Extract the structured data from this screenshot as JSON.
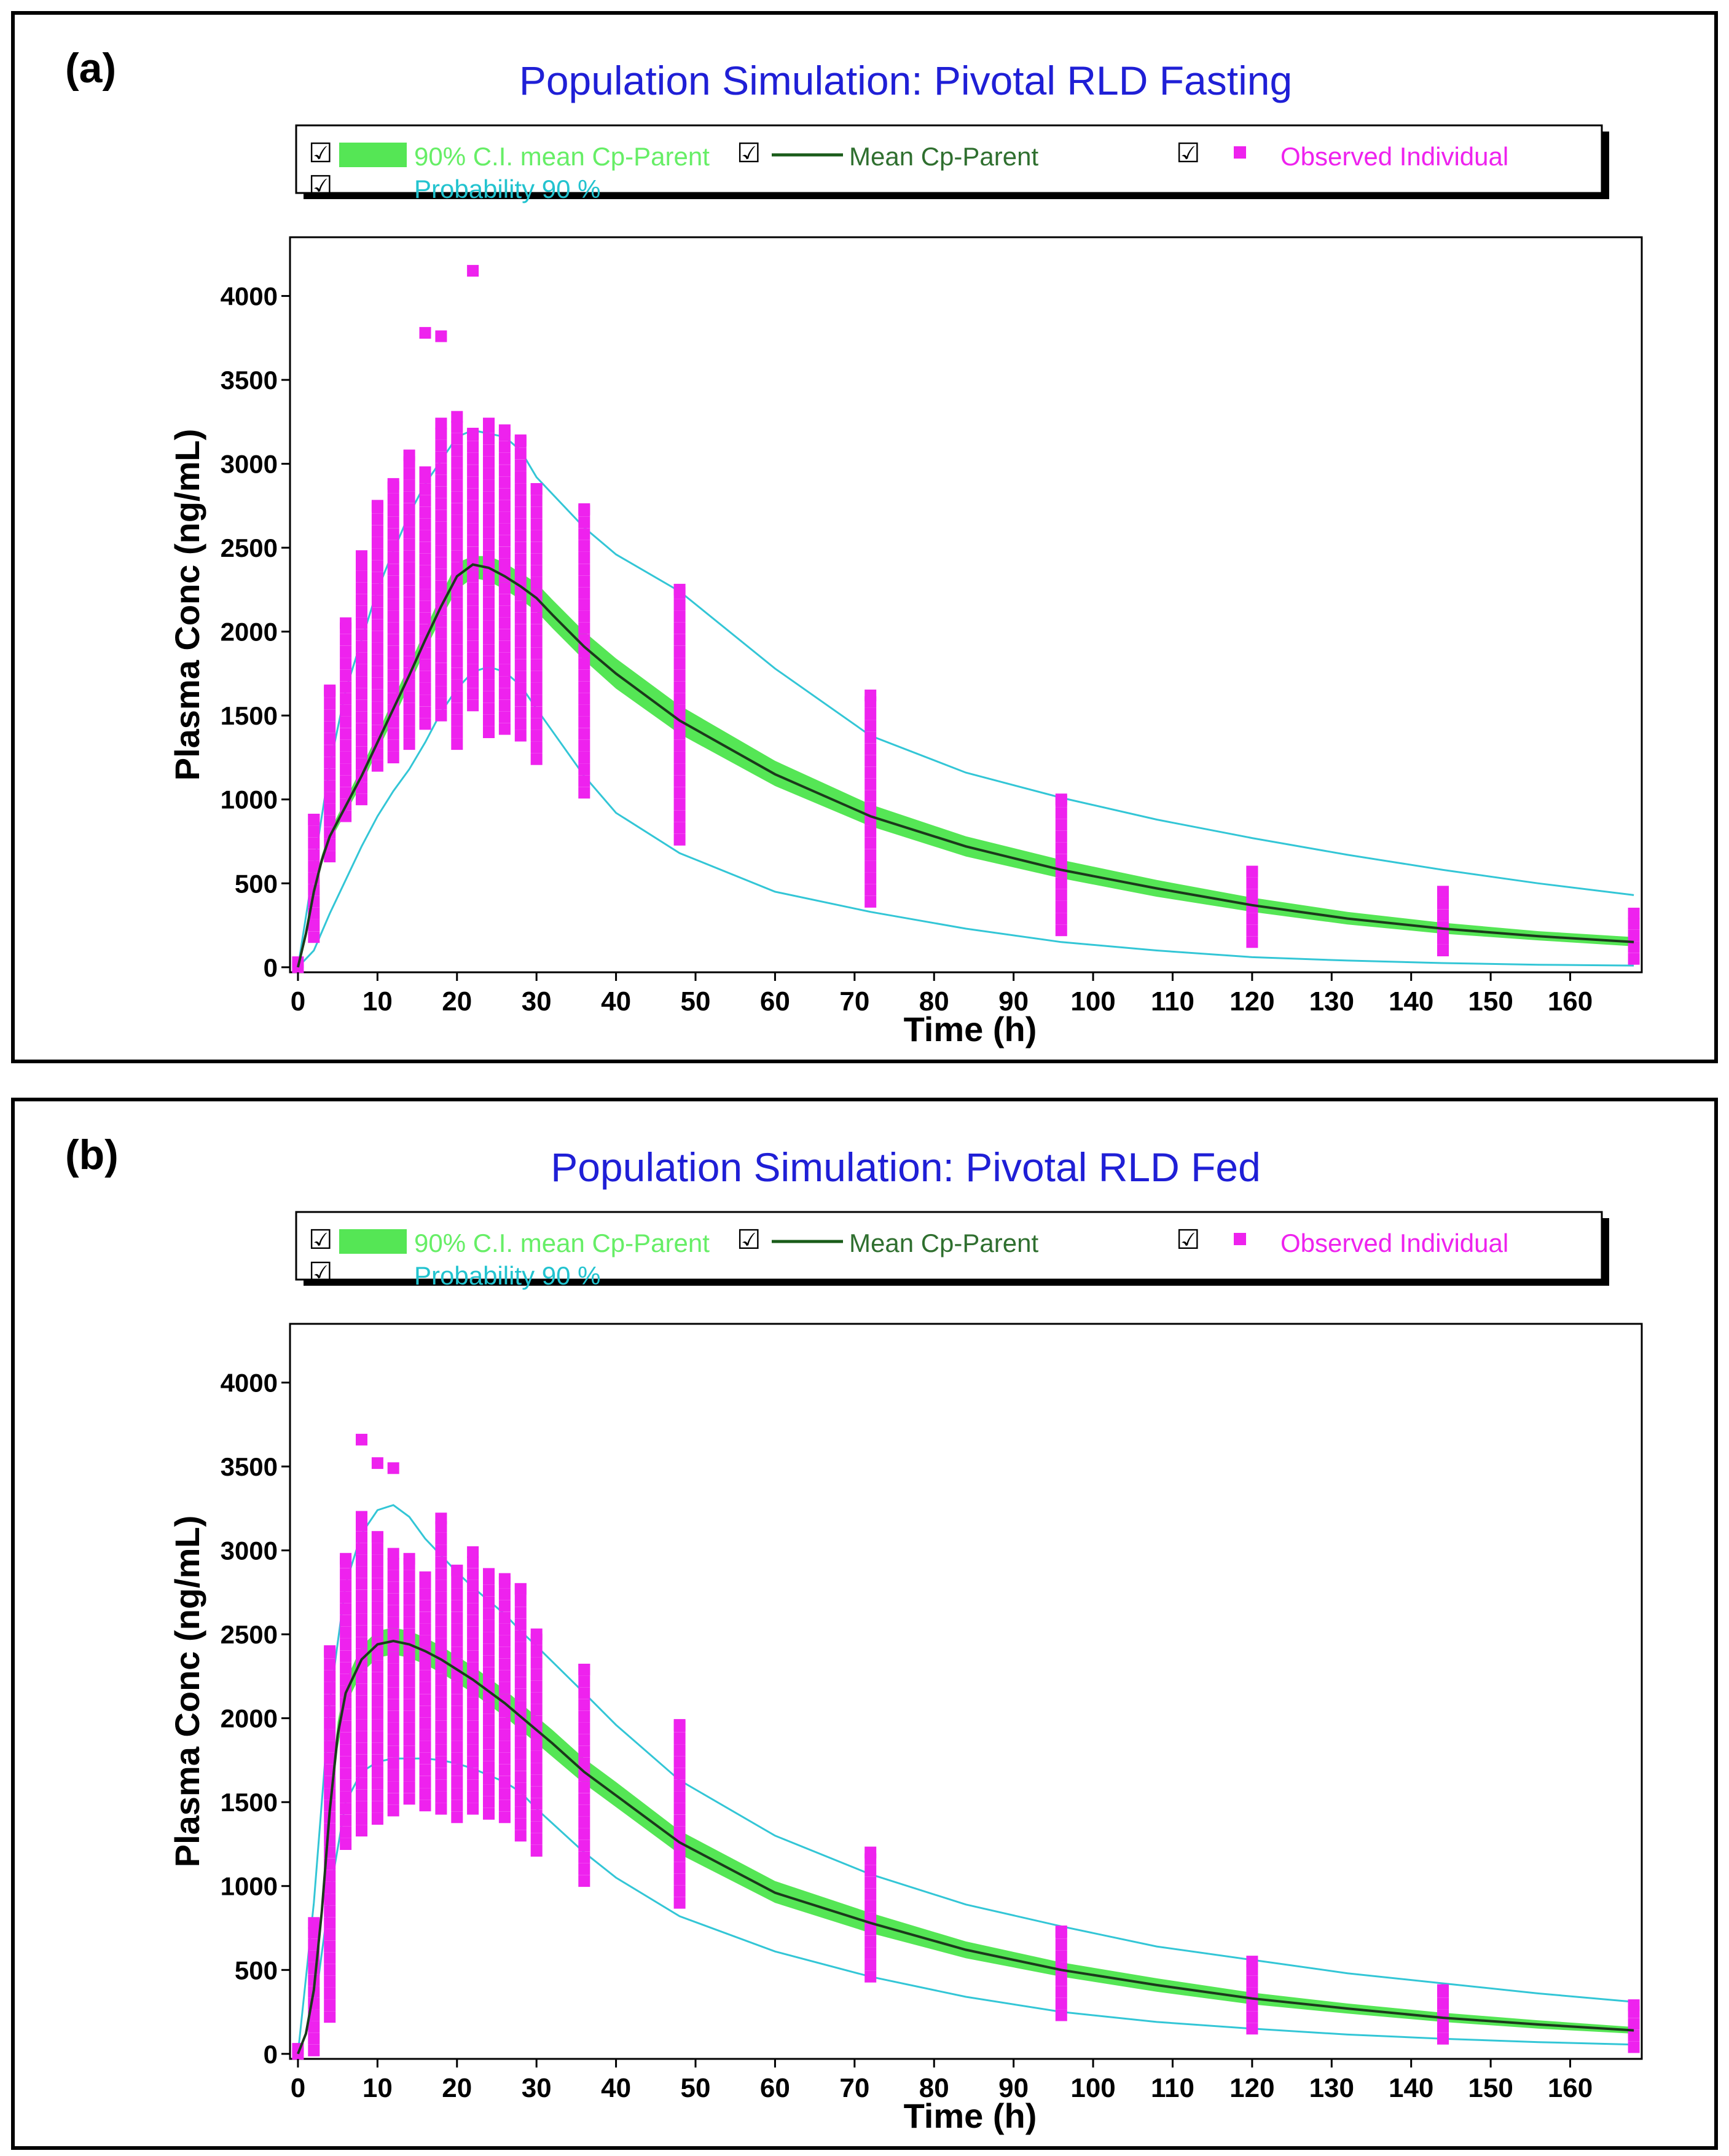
{
  "colors": {
    "title": "#1f1fd6",
    "ci_band": "#55e655",
    "ci_text": "#66ee66",
    "mean_line": "#1a5c1a",
    "mean_text": "#2f6f2f",
    "prob_line": "#33c6d6",
    "prob_text": "#22c3cf",
    "observed": "#ee22ee"
  },
  "checkbox_glyph": "☑",
  "panels": [
    {
      "label": "(a)",
      "legend": {
        "ci": "90% C.I. mean Cp-Parent",
        "mean": "Mean Cp-Parent",
        "observed": "Observed Individual",
        "probability": "Probability 90 %"
      },
      "chart_data": {
        "type": "line",
        "title": "Population Simulation: Pivotal RLD Fasting",
        "xlabel": "Time (h)",
        "ylabel": "Plasma Conc (ng/mL)",
        "xlim": [
          -1,
          169
        ],
        "ylim": [
          -30,
          4350
        ],
        "xticks": [
          0,
          10,
          20,
          30,
          40,
          50,
          60,
          70,
          80,
          90,
          100,
          110,
          120,
          130,
          140,
          150,
          160
        ],
        "yticks": [
          0,
          500,
          1000,
          1500,
          2000,
          2500,
          3000,
          3500,
          4000
        ],
        "mean": {
          "x": [
            0,
            1,
            2,
            3,
            4,
            6,
            8,
            10,
            12,
            14,
            16,
            18,
            20,
            22,
            24,
            26,
            28,
            30,
            32,
            36,
            40,
            48,
            60,
            72,
            84,
            96,
            108,
            120,
            132,
            144,
            156,
            168
          ],
          "y": [
            0,
            200,
            450,
            640,
            780,
            960,
            1140,
            1340,
            1540,
            1740,
            1950,
            2150,
            2330,
            2400,
            2380,
            2330,
            2270,
            2200,
            2100,
            1910,
            1750,
            1470,
            1150,
            900,
            720,
            580,
            470,
            370,
            290,
            230,
            185,
            150
          ]
        },
        "ci_band": {
          "x": [
            0,
            1,
            2,
            3,
            4,
            6,
            8,
            10,
            12,
            14,
            16,
            18,
            20,
            22,
            24,
            26,
            28,
            30,
            32,
            36,
            40,
            48,
            60,
            72,
            84,
            96,
            108,
            120,
            132,
            144,
            156,
            168
          ],
          "lower": [
            0,
            190,
            430,
            610,
            750,
            920,
            1090,
            1290,
            1480,
            1680,
            1890,
            2080,
            2250,
            2320,
            2300,
            2250,
            2190,
            2120,
            2020,
            1830,
            1660,
            1390,
            1080,
            840,
            660,
            530,
            420,
            330,
            255,
            200,
            160,
            125
          ],
          "upper": [
            0,
            210,
            470,
            670,
            810,
            1000,
            1190,
            1390,
            1600,
            1800,
            2010,
            2220,
            2410,
            2450,
            2450,
            2410,
            2350,
            2290,
            2190,
            2000,
            1840,
            1560,
            1230,
            970,
            780,
            640,
            520,
            415,
            330,
            265,
            215,
            180
          ]
        },
        "prob_upper": {
          "x": [
            0,
            2,
            4,
            6,
            8,
            10,
            12,
            14,
            16,
            18,
            20,
            22,
            24,
            26,
            28,
            30,
            36,
            40,
            48,
            60,
            72,
            84,
            96,
            108,
            120,
            132,
            144,
            156,
            168
          ],
          "y": [
            0,
            600,
            1200,
            1650,
            1950,
            2250,
            2480,
            2700,
            2880,
            3020,
            3160,
            3200,
            3180,
            3160,
            3080,
            2920,
            2620,
            2460,
            2240,
            1780,
            1380,
            1160,
            1010,
            880,
            770,
            670,
            580,
            500,
            430
          ]
        },
        "prob_lower": {
          "x": [
            0,
            2,
            4,
            6,
            8,
            10,
            12,
            14,
            16,
            18,
            20,
            22,
            24,
            26,
            28,
            30,
            36,
            40,
            48,
            60,
            72,
            84,
            96,
            108,
            120,
            132,
            144,
            156,
            168
          ],
          "y": [
            0,
            100,
            320,
            520,
            720,
            900,
            1050,
            1180,
            1340,
            1520,
            1660,
            1760,
            1790,
            1760,
            1680,
            1540,
            1140,
            920,
            680,
            450,
            330,
            230,
            150,
            100,
            60,
            40,
            25,
            15,
            10
          ]
        },
        "observed": [
          {
            "t": 0,
            "min": 0,
            "max": 30
          },
          {
            "t": 2,
            "min": 180,
            "max": 880
          },
          {
            "t": 4,
            "min": 660,
            "max": 1650
          },
          {
            "t": 6,
            "min": 900,
            "max": 2050
          },
          {
            "t": 8,
            "min": 1000,
            "max": 2450
          },
          {
            "t": 10,
            "min": 1200,
            "max": 2750
          },
          {
            "t": 12,
            "min": 1250,
            "max": 2880
          },
          {
            "t": 14,
            "min": 1330,
            "max": 3050
          },
          {
            "t": 16,
            "min": 1450,
            "max": 2950
          },
          {
            "t": 18,
            "min": 1500,
            "max": 3240
          },
          {
            "t": 20,
            "min": 1330,
            "max": 3280
          },
          {
            "t": 22,
            "min": 1560,
            "max": 3180
          },
          {
            "t": 24,
            "min": 1400,
            "max": 3240
          },
          {
            "t": 26,
            "min": 1420,
            "max": 3200
          },
          {
            "t": 28,
            "min": 1380,
            "max": 3140
          },
          {
            "t": 30,
            "min": 1240,
            "max": 2850
          },
          {
            "t": 36,
            "min": 1040,
            "max": 2730
          },
          {
            "t": 48,
            "min": 760,
            "max": 2250
          },
          {
            "t": 72,
            "min": 390,
            "max": 1620
          },
          {
            "t": 96,
            "min": 220,
            "max": 1000
          },
          {
            "t": 120,
            "min": 150,
            "max": 570
          },
          {
            "t": 144,
            "min": 100,
            "max": 450
          },
          {
            "t": 168,
            "min": 50,
            "max": 320
          }
        ],
        "outliers": [
          {
            "t": 16,
            "y": 3780
          },
          {
            "t": 18,
            "y": 3760
          },
          {
            "t": 22,
            "y": 4150
          }
        ]
      }
    },
    {
      "label": "(b)",
      "legend": {
        "ci": "90% C.I. mean Cp-Parent",
        "mean": "Mean Cp-Parent",
        "observed": "Observed Individual",
        "probability": "Probability 90 %"
      },
      "chart_data": {
        "type": "line",
        "title": "Population Simulation: Pivotal RLD Fed",
        "xlabel": "Time (h)",
        "ylabel": "Plasma Conc (ng/mL)",
        "xlim": [
          -1,
          169
        ],
        "ylim": [
          -30,
          4350
        ],
        "xticks": [
          0,
          10,
          20,
          30,
          40,
          50,
          60,
          70,
          80,
          90,
          100,
          110,
          120,
          130,
          140,
          150,
          160
        ],
        "yticks": [
          0,
          500,
          1000,
          1500,
          2000,
          2500,
          3000,
          3500,
          4000
        ],
        "mean": {
          "x": [
            0,
            1,
            2,
            3,
            4,
            5,
            6,
            8,
            10,
            12,
            14,
            16,
            18,
            20,
            22,
            24,
            26,
            28,
            30,
            32,
            36,
            40,
            48,
            60,
            72,
            84,
            96,
            108,
            120,
            132,
            144,
            156,
            168
          ],
          "y": [
            0,
            120,
            380,
            850,
            1450,
            1900,
            2150,
            2350,
            2440,
            2460,
            2440,
            2400,
            2350,
            2290,
            2230,
            2160,
            2090,
            2010,
            1930,
            1850,
            1680,
            1540,
            1260,
            960,
            780,
            620,
            500,
            410,
            330,
            270,
            215,
            175,
            140
          ]
        },
        "ci_band": {
          "x": [
            0,
            1,
            2,
            3,
            4,
            5,
            6,
            8,
            10,
            12,
            14,
            16,
            18,
            20,
            22,
            24,
            26,
            28,
            30,
            32,
            36,
            40,
            48,
            60,
            72,
            84,
            96,
            108,
            120,
            132,
            144,
            156,
            168
          ],
          "lower": [
            0,
            110,
            350,
            800,
            1380,
            1820,
            2080,
            2270,
            2360,
            2380,
            2360,
            2320,
            2270,
            2210,
            2150,
            2080,
            2010,
            1930,
            1850,
            1770,
            1610,
            1470,
            1190,
            900,
            720,
            570,
            460,
            370,
            295,
            240,
            190,
            150,
            120
          ],
          "upper": [
            0,
            130,
            410,
            900,
            1520,
            1980,
            2220,
            2430,
            2520,
            2540,
            2520,
            2480,
            2430,
            2370,
            2310,
            2240,
            2170,
            2090,
            2010,
            1930,
            1760,
            1620,
            1330,
            1030,
            840,
            670,
            545,
            450,
            365,
            300,
            245,
            200,
            160
          ]
        },
        "prob_upper": {
          "x": [
            0,
            2,
            4,
            6,
            8,
            10,
            12,
            14,
            16,
            18,
            20,
            22,
            24,
            26,
            28,
            30,
            36,
            40,
            48,
            60,
            72,
            84,
            96,
            108,
            120,
            132,
            144,
            156,
            168
          ],
          "y": [
            0,
            900,
            2100,
            2800,
            3100,
            3240,
            3270,
            3200,
            3070,
            2970,
            2870,
            2780,
            2700,
            2620,
            2520,
            2430,
            2150,
            1960,
            1630,
            1300,
            1070,
            890,
            760,
            640,
            560,
            480,
            420,
            360,
            310
          ]
        },
        "prob_lower": {
          "x": [
            0,
            2,
            4,
            6,
            8,
            10,
            12,
            14,
            16,
            18,
            20,
            22,
            24,
            26,
            28,
            30,
            36,
            40,
            48,
            60,
            72,
            84,
            96,
            108,
            120,
            132,
            144,
            156,
            168
          ],
          "y": [
            0,
            250,
            950,
            1500,
            1680,
            1740,
            1760,
            1760,
            1760,
            1750,
            1730,
            1700,
            1660,
            1620,
            1560,
            1460,
            1200,
            1050,
            820,
            610,
            460,
            340,
            250,
            190,
            150,
            115,
            90,
            70,
            55
          ]
        },
        "observed": [
          {
            "t": 0,
            "min": 0,
            "max": 30
          },
          {
            "t": 2,
            "min": 20,
            "max": 780
          },
          {
            "t": 4,
            "min": 220,
            "max": 2400
          },
          {
            "t": 6,
            "min": 1250,
            "max": 2950
          },
          {
            "t": 8,
            "min": 1330,
            "max": 3200
          },
          {
            "t": 10,
            "min": 1400,
            "max": 3080
          },
          {
            "t": 12,
            "min": 1450,
            "max": 2980
          },
          {
            "t": 14,
            "min": 1520,
            "max": 2950
          },
          {
            "t": 16,
            "min": 1480,
            "max": 2840
          },
          {
            "t": 18,
            "min": 1460,
            "max": 3190
          },
          {
            "t": 20,
            "min": 1410,
            "max": 2880
          },
          {
            "t": 22,
            "min": 1460,
            "max": 2990
          },
          {
            "t": 24,
            "min": 1430,
            "max": 2860
          },
          {
            "t": 26,
            "min": 1410,
            "max": 2830
          },
          {
            "t": 28,
            "min": 1300,
            "max": 2770
          },
          {
            "t": 30,
            "min": 1210,
            "max": 2500
          },
          {
            "t": 36,
            "min": 1030,
            "max": 2290
          },
          {
            "t": 48,
            "min": 900,
            "max": 1960
          },
          {
            "t": 72,
            "min": 460,
            "max": 1200
          },
          {
            "t": 96,
            "min": 230,
            "max": 730
          },
          {
            "t": 120,
            "min": 150,
            "max": 550
          },
          {
            "t": 144,
            "min": 90,
            "max": 380
          },
          {
            "t": 168,
            "min": 40,
            "max": 290
          }
        ],
        "outliers": [
          {
            "t": 8,
            "y": 3660
          },
          {
            "t": 10,
            "y": 3520
          },
          {
            "t": 12,
            "y": 3490
          }
        ]
      }
    }
  ]
}
